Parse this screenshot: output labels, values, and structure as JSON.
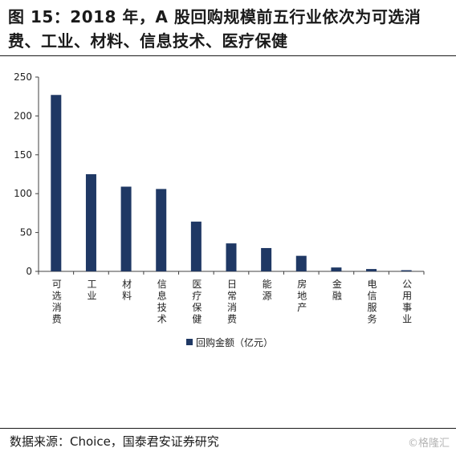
{
  "title": "图 15：2018 年，A 股回购规模前五行业依次为可选消费、工业、材料、信息技术、医疗保健",
  "source": "数据来源：Choice，国泰君安证券研究",
  "watermark": "©格隆汇",
  "colors": {
    "bar": "#1F3864",
    "axis": "#404040"
  },
  "chart_data": {
    "type": "bar",
    "categories": [
      "可选消费",
      "工业",
      "材料",
      "信息技术",
      "医疗保健",
      "日常消费",
      "能源",
      "房地产",
      "金融",
      "电信服务",
      "公用事业"
    ],
    "series": [
      {
        "name": "回购金额（亿元）",
        "values": [
          227,
          125,
          109,
          106,
          64,
          36,
          30,
          20,
          5,
          3,
          1.5
        ]
      }
    ],
    "yticks": [
      0,
      50,
      100,
      150,
      200,
      250
    ],
    "ylim": [
      0,
      250
    ],
    "legend": "bottom-center",
    "grid": false
  }
}
